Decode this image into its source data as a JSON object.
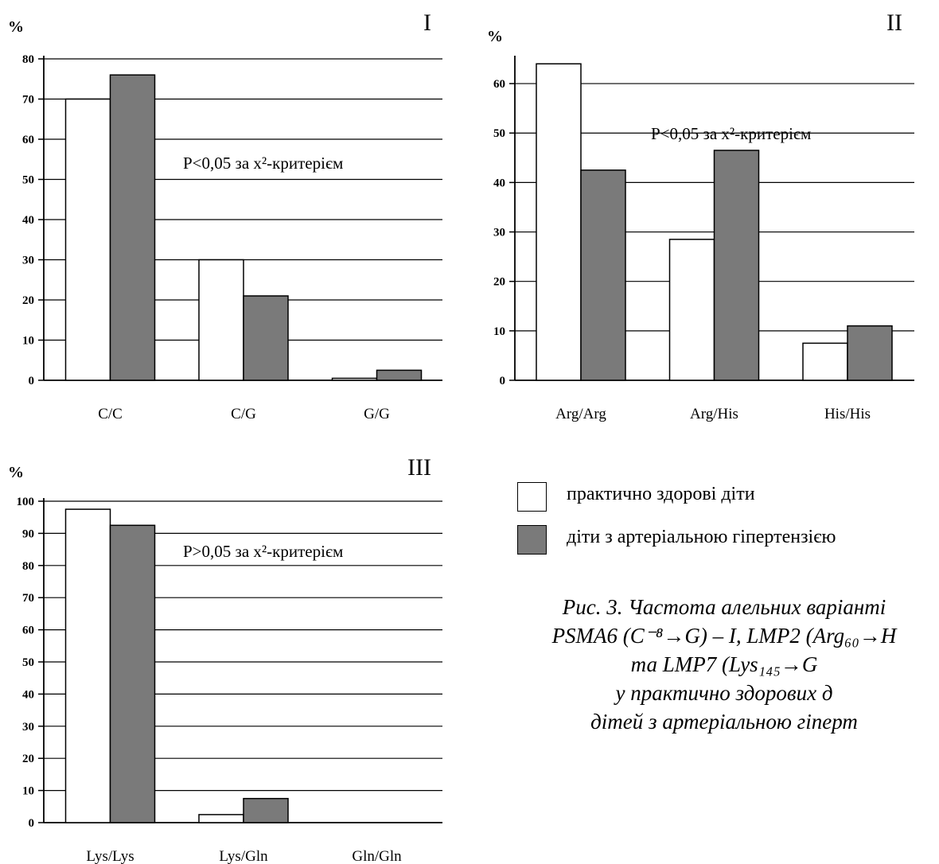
{
  "chart_data": [
    {
      "type": "bar",
      "panel_label": "I",
      "ylabel": "%",
      "ylim": [
        0,
        80
      ],
      "yticks": [
        "0",
        "10",
        "20",
        "30",
        "40",
        "50",
        "60",
        "70",
        "80"
      ],
      "categories": [
        "C/C",
        "C/G",
        "G/G"
      ],
      "series": [
        {
          "name": "практично здорові діти",
          "values": [
            70,
            30,
            0.5
          ],
          "color": "#ffffff"
        },
        {
          "name": "діти з артеріальною гіпертензією",
          "values": [
            76,
            21,
            2.5
          ],
          "color": "#7a7a7a"
        }
      ],
      "annotation": "P<0,05 за x²-критерієм",
      "grid": true
    },
    {
      "type": "bar",
      "panel_label": "II",
      "ylabel": "%",
      "ylim": [
        0,
        65
      ],
      "yticks": [
        "0",
        "10",
        "20",
        "30",
        "40",
        "50",
        "60"
      ],
      "categories": [
        "Arg/Arg",
        "Arg/His",
        "His/His"
      ],
      "series": [
        {
          "name": "практично здорові діти",
          "values": [
            64,
            28.5,
            7.5
          ],
          "color": "#ffffff"
        },
        {
          "name": "діти з артеріальною гіпертензією",
          "values": [
            42.5,
            46.5,
            11
          ],
          "color": "#7a7a7a"
        }
      ],
      "annotation": "P<0,05 за x²-критерієм",
      "grid": true
    },
    {
      "type": "bar",
      "panel_label": "III",
      "ylabel": "%",
      "ylim": [
        0,
        100
      ],
      "yticks": [
        "0",
        "10",
        "20",
        "30",
        "40",
        "50",
        "60",
        "70",
        "80",
        "90",
        "100"
      ],
      "categories": [
        "Lys/Lys",
        "Lys/Gln",
        "Gln/Gln"
      ],
      "series": [
        {
          "name": "практично здорові діти",
          "values": [
            97.5,
            2.5,
            0
          ],
          "color": "#ffffff"
        },
        {
          "name": "діти з артеріальною гіпертензією",
          "values": [
            92.5,
            7.5,
            0
          ],
          "color": "#7a7a7a"
        }
      ],
      "annotation": "P>0,05 за x²-критерієм",
      "grid": true
    }
  ],
  "legend": {
    "items": [
      {
        "label": "практично здорові діти",
        "color": "#ffffff"
      },
      {
        "label": "діти з артеріальною гіпертензією",
        "color": "#7a7a7a"
      }
    ]
  },
  "caption": {
    "line1": "Рис. 3. Частота алельних варіанті",
    "line2": "PSMA6 (C⁻⁸→G) – I, LMP2 (Arg₆₀→H",
    "line3": "та LMP7 (Lys₁₄₅→G",
    "line4": "у практично здорових д",
    "line5": "дітей з артеріальною гіперт"
  }
}
